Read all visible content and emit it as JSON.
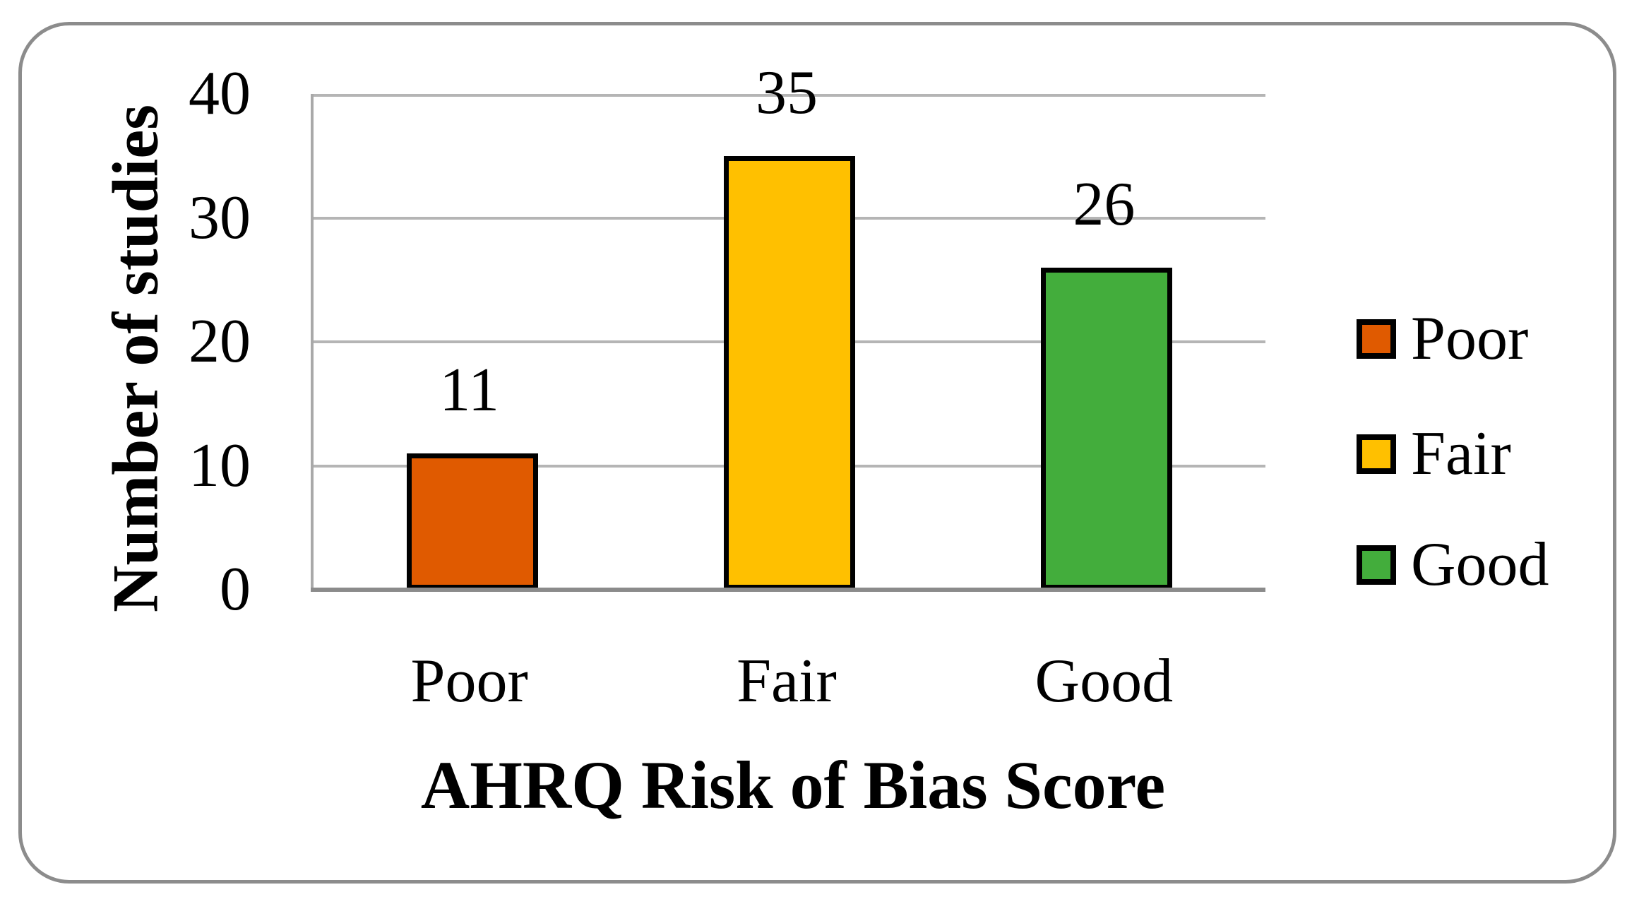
{
  "figure": {
    "frame_color": "#8C8C8C",
    "background": "#ffffff"
  },
  "chart_data": {
    "type": "bar",
    "categories": [
      "Poor",
      "Fair",
      "Good"
    ],
    "values": [
      11,
      35,
      26
    ],
    "value_labels": [
      "11",
      "35",
      "26"
    ],
    "bar_colors": [
      "#E05A00",
      "#FFC000",
      "#43AD3C"
    ],
    "title": "",
    "xlabel": "AHRQ Risk of Bias Score",
    "ylabel": "Number of studies",
    "ylim": [
      0,
      40
    ],
    "yticks": [
      0,
      10,
      20,
      30,
      40
    ],
    "grid": true,
    "legend": {
      "position": "right",
      "entries": [
        {
          "label": "Poor",
          "color": "#E05A00"
        },
        {
          "label": "Fair",
          "color": "#FFC000"
        },
        {
          "label": "Good",
          "color": "#43AD3C"
        }
      ]
    },
    "colors": {
      "gridline": "#B5B5B5",
      "axis_left": "#A9A9A9",
      "axis_bottom": "#8B8B8B",
      "bar_border": "#000000",
      "text": "#000000"
    }
  }
}
